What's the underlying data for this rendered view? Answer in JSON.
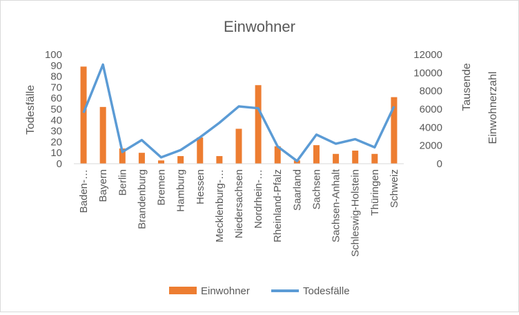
{
  "chart_data": {
    "type": "bar",
    "title": "Einwohner",
    "categories": [
      "Baden-…",
      "Bayern",
      "Berlin",
      "Brandenburg",
      "Bremen",
      "Hamburg",
      "Hessen",
      "Mecklenburg-…",
      "Niedersachsen",
      "Nordrhein-…",
      "Rheinland-Pfalz",
      "Saarland",
      "Sachsen",
      "Sachsen-Anhalt",
      "Schleswig-Holstein",
      "Thüringen",
      "Schweiz"
    ],
    "series": [
      {
        "name": "Einwohner",
        "type": "bar",
        "axis": "left",
        "color": "#ED7D31",
        "values": [
          89,
          52,
          14,
          10,
          3,
          7,
          24,
          7,
          32,
          72,
          16,
          3,
          17,
          9,
          12,
          9,
          61
        ]
      },
      {
        "name": "Todesfälle",
        "type": "line",
        "axis": "right",
        "color": "#5B9BD5",
        "values": [
          5600,
          10900,
          1300,
          2600,
          700,
          1500,
          2900,
          4500,
          6300,
          6100,
          1900,
          300,
          3200,
          2200,
          2700,
          1800,
          6300
        ]
      }
    ],
    "left_axis": {
      "label": "Todesfälle",
      "min": 0,
      "max": 100,
      "ticks": [
        "0",
        "10",
        "20",
        "30",
        "40",
        "50",
        "60",
        "70",
        "80",
        "90",
        "100"
      ]
    },
    "right_axis": {
      "label_top": "Tausende",
      "label": "Einwohnerzahl",
      "min": 0,
      "max": 12000,
      "ticks": [
        "0",
        "2000",
        "4000",
        "6000",
        "8000",
        "10000",
        "12000"
      ]
    },
    "legend_position": "bottom",
    "grid": false
  }
}
